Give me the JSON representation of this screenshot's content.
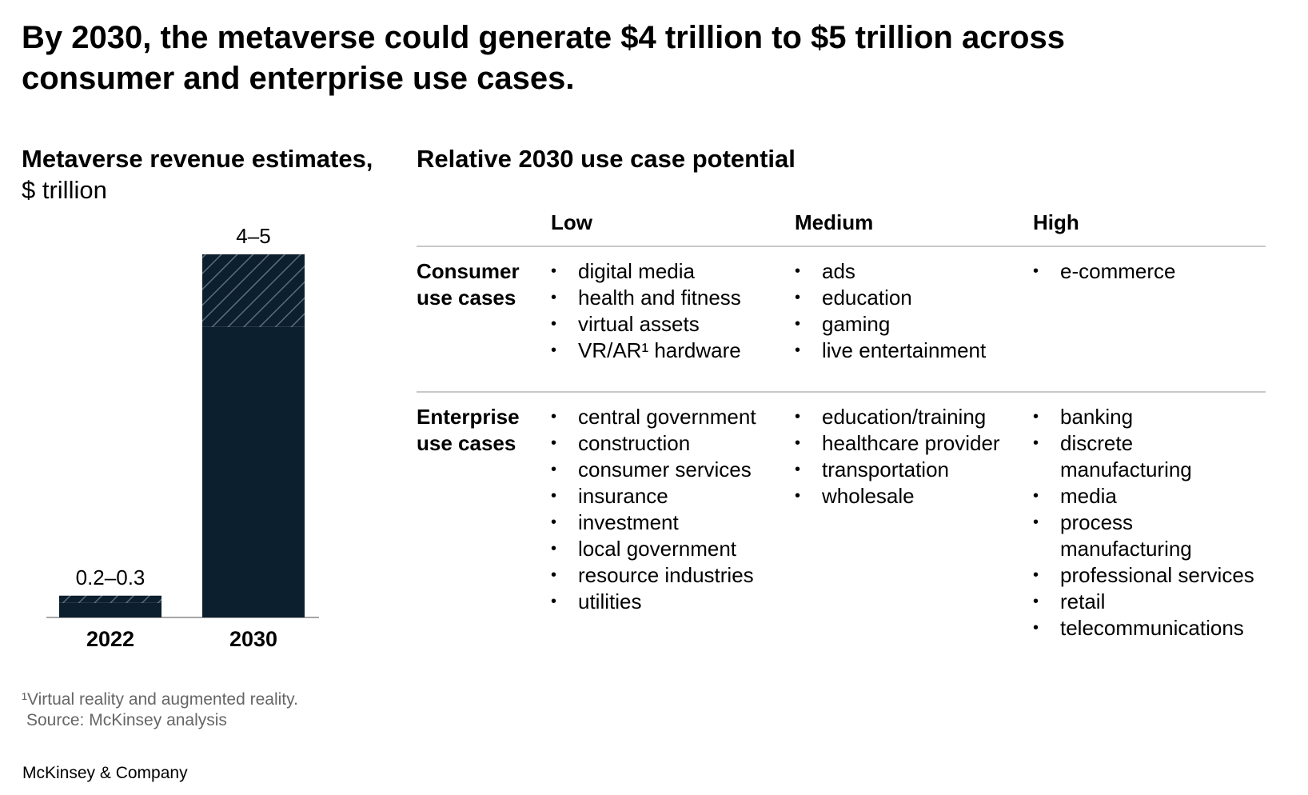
{
  "title": "By 2030, the metaverse could generate $4 trillion to $5 trillion across consumer and enterprise use cases.",
  "chart_data": {
    "type": "range_bar",
    "title": "Metaverse revenue estimates,",
    "subtitle": "$ trillion",
    "categories": [
      "2022",
      "2030"
    ],
    "low": [
      0.2,
      4
    ],
    "high": [
      0.3,
      5
    ],
    "value_labels": [
      "0.2–0.3",
      "4–5"
    ],
    "color": "#0b1f2e",
    "hatch_color": "#5b6c79"
  },
  "use_cases": {
    "title": "Relative 2030 use case potential",
    "columns": [
      "Low",
      "Medium",
      "High"
    ],
    "rows": [
      {
        "label": "Consumer use cases",
        "cells": [
          [
            "digital media",
            "health and fitness",
            "virtual assets",
            "VR/AR¹ hardware"
          ],
          [
            "ads",
            "education",
            "gaming",
            "live entertainment"
          ],
          [
            "e-commerce"
          ]
        ]
      },
      {
        "label": "Enterprise use cases",
        "cells": [
          [
            "central government",
            "construction",
            "consumer services",
            "insurance",
            "investment",
            "local government",
            "resource industries",
            "utilities"
          ],
          [
            "education/training",
            "healthcare provider",
            "transportation",
            "wholesale"
          ],
          [
            "banking",
            "discrete manufacturing",
            "media",
            "process manufacturing",
            "professional services",
            "retail",
            "telecommunications"
          ]
        ]
      }
    ]
  },
  "footnote": "¹Virtual reality and augmented reality.",
  "source": "Source: McKinsey analysis",
  "brand": "McKinsey & Company"
}
